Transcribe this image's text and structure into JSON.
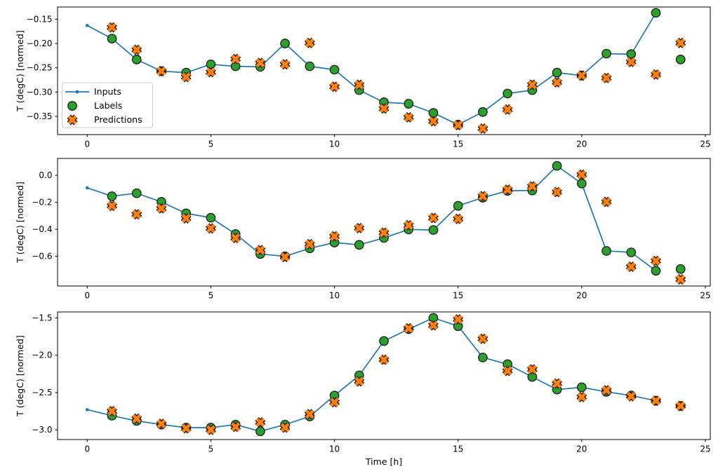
{
  "figure": {
    "background": "#ffffff",
    "xlabel": "Time [h]",
    "xlim": [
      -1.2,
      25.2
    ],
    "xticks": [
      0,
      5,
      10,
      15,
      20,
      25
    ],
    "xtick_labels": [
      "0",
      "5",
      "10",
      "15",
      "20",
      "25"
    ],
    "colors": {
      "inputs_line": "#1f77b4",
      "labels_fill": "#2ca02c",
      "predictions_fill": "#ff7f0e",
      "marker_edge": "#1a1a1a",
      "axis": "#000000",
      "text": "#000000",
      "legend_border": "#cccccc",
      "legend_bg": "#ffffff"
    },
    "legend": {
      "items": [
        {
          "label": "Inputs",
          "marker": "line-dot-icon"
        },
        {
          "label": "Labels",
          "marker": "circle-icon"
        },
        {
          "label": "Predictions",
          "marker": "x-icon"
        }
      ]
    }
  },
  "chart_data": [
    {
      "type": "line",
      "ylabel": "T (degC) [normed]",
      "ylim": [
        -0.3875,
        -0.125
      ],
      "yticks": [
        -0.15,
        -0.2,
        -0.25,
        -0.3,
        -0.35
      ],
      "ytick_labels": [
        "−0.15",
        "−0.20",
        "−0.25",
        "−0.30",
        "−0.35"
      ],
      "grid": false,
      "series": [
        {
          "name": "Inputs",
          "x": [
            0,
            1,
            2,
            3,
            4,
            5,
            6,
            7,
            8,
            9,
            10,
            11,
            12,
            13,
            14,
            15,
            16,
            17,
            18,
            19,
            20,
            21,
            22,
            23
          ],
          "values": [
            -0.163,
            -0.19,
            -0.233,
            -0.257,
            -0.26,
            -0.243,
            -0.247,
            -0.248,
            -0.2,
            -0.247,
            -0.254,
            -0.296,
            -0.321,
            -0.324,
            -0.343,
            -0.367,
            -0.341,
            -0.303,
            -0.296,
            -0.26,
            -0.266,
            -0.221,
            -0.222,
            -0.137
          ]
        },
        {
          "name": "Labels",
          "x": [
            1,
            2,
            3,
            4,
            5,
            6,
            7,
            8,
            9,
            10,
            11,
            12,
            13,
            14,
            15,
            16,
            17,
            18,
            19,
            20,
            21,
            22,
            23,
            24
          ],
          "values": [
            -0.19,
            -0.233,
            -0.257,
            -0.26,
            -0.243,
            -0.247,
            -0.248,
            -0.2,
            -0.247,
            -0.254,
            -0.296,
            -0.321,
            -0.324,
            -0.343,
            -0.367,
            -0.341,
            -0.303,
            -0.296,
            -0.26,
            -0.266,
            -0.221,
            -0.222,
            -0.137,
            -0.233
          ]
        },
        {
          "name": "Predictions",
          "x": [
            1,
            2,
            3,
            4,
            5,
            6,
            7,
            8,
            9,
            10,
            11,
            12,
            13,
            14,
            15,
            16,
            17,
            18,
            19,
            20,
            21,
            22,
            23,
            24
          ],
          "values": [
            -0.167,
            -0.213,
            -0.257,
            -0.269,
            -0.259,
            -0.232,
            -0.24,
            -0.243,
            -0.199,
            -0.289,
            -0.285,
            -0.334,
            -0.352,
            -0.36,
            -0.368,
            -0.375,
            -0.336,
            -0.285,
            -0.28,
            -0.266,
            -0.271,
            -0.238,
            -0.264,
            -0.199
          ]
        }
      ]
    },
    {
      "type": "line",
      "ylabel": "T (degC) [normed]",
      "ylim": [
        -0.82,
        0.125
      ],
      "yticks": [
        0.0,
        -0.2,
        -0.4,
        -0.6
      ],
      "ytick_labels": [
        "0.0",
        "−0.2",
        "−0.4",
        "−0.6"
      ],
      "grid": false,
      "series": [
        {
          "name": "Inputs",
          "x": [
            0,
            1,
            2,
            3,
            4,
            5,
            6,
            7,
            8,
            9,
            10,
            11,
            12,
            13,
            14,
            15,
            16,
            17,
            18,
            19,
            20,
            21,
            22,
            23
          ],
          "values": [
            -0.093,
            -0.155,
            -0.133,
            -0.197,
            -0.282,
            -0.314,
            -0.435,
            -0.583,
            -0.6,
            -0.541,
            -0.498,
            -0.515,
            -0.464,
            -0.401,
            -0.405,
            -0.226,
            -0.166,
            -0.115,
            -0.112,
            0.07,
            -0.061,
            -0.56,
            -0.571,
            -0.707
          ]
        },
        {
          "name": "Labels",
          "x": [
            1,
            2,
            3,
            4,
            5,
            6,
            7,
            8,
            9,
            10,
            11,
            12,
            13,
            14,
            15,
            16,
            17,
            18,
            19,
            20,
            21,
            22,
            23,
            24
          ],
          "values": [
            -0.155,
            -0.133,
            -0.197,
            -0.282,
            -0.314,
            -0.435,
            -0.583,
            -0.6,
            -0.541,
            -0.498,
            -0.515,
            -0.464,
            -0.401,
            -0.405,
            -0.226,
            -0.166,
            -0.115,
            -0.112,
            0.07,
            -0.061,
            -0.56,
            -0.571,
            -0.707,
            -0.694
          ]
        },
        {
          "name": "Predictions",
          "x": [
            1,
            2,
            3,
            4,
            5,
            6,
            7,
            8,
            9,
            10,
            11,
            12,
            13,
            14,
            15,
            16,
            17,
            18,
            19,
            20,
            21,
            22,
            23,
            24
          ],
          "values": [
            -0.226,
            -0.289,
            -0.245,
            -0.319,
            -0.393,
            -0.464,
            -0.554,
            -0.605,
            -0.51,
            -0.452,
            -0.391,
            -0.425,
            -0.37,
            -0.316,
            -0.323,
            -0.155,
            -0.107,
            -0.082,
            -0.124,
            0.005,
            -0.197,
            -0.677,
            -0.634,
            -0.771
          ]
        }
      ]
    },
    {
      "type": "line",
      "ylabel": "T (degC) [normed]",
      "ylim": [
        -3.13,
        -1.42
      ],
      "yticks": [
        -1.5,
        -2.0,
        -2.5,
        -3.0
      ],
      "ytick_labels": [
        "−1.5",
        "−2.0",
        "−2.5",
        "−3.0"
      ],
      "grid": false,
      "series": [
        {
          "name": "Inputs",
          "x": [
            0,
            1,
            2,
            3,
            4,
            5,
            6,
            7,
            8,
            9,
            10,
            11,
            12,
            13,
            14,
            15,
            16,
            17,
            18,
            19,
            20,
            21,
            22,
            23
          ],
          "values": [
            -2.73,
            -2.81,
            -2.88,
            -2.93,
            -2.97,
            -2.97,
            -2.93,
            -3.02,
            -2.93,
            -2.82,
            -2.54,
            -2.27,
            -1.81,
            -1.65,
            -1.5,
            -1.61,
            -2.03,
            -2.12,
            -2.29,
            -2.46,
            -2.43,
            -2.49,
            -2.54,
            -2.61
          ]
        },
        {
          "name": "Labels",
          "x": [
            1,
            2,
            3,
            4,
            5,
            6,
            7,
            8,
            9,
            10,
            11,
            12,
            13,
            14,
            15,
            16,
            17,
            18,
            19,
            20,
            21,
            22,
            23,
            24
          ],
          "values": [
            -2.81,
            -2.88,
            -2.93,
            -2.97,
            -2.97,
            -2.93,
            -3.02,
            -2.93,
            -2.82,
            -2.54,
            -2.27,
            -1.81,
            -1.65,
            -1.5,
            -1.61,
            -2.03,
            -2.12,
            -2.29,
            -2.46,
            -2.43,
            -2.49,
            -2.54,
            -2.61,
            -2.68
          ]
        },
        {
          "name": "Predictions",
          "x": [
            1,
            2,
            3,
            4,
            5,
            6,
            7,
            8,
            9,
            10,
            11,
            12,
            13,
            14,
            15,
            16,
            17,
            18,
            19,
            20,
            21,
            22,
            23,
            24
          ],
          "values": [
            -2.75,
            -2.85,
            -2.92,
            -2.98,
            -3.0,
            -2.96,
            -2.9,
            -2.97,
            -2.79,
            -2.63,
            -2.35,
            -2.06,
            -1.64,
            -1.6,
            -1.52,
            -1.78,
            -2.21,
            -2.19,
            -2.38,
            -2.56,
            -2.47,
            -2.55,
            -2.61,
            -2.68
          ]
        }
      ]
    }
  ]
}
